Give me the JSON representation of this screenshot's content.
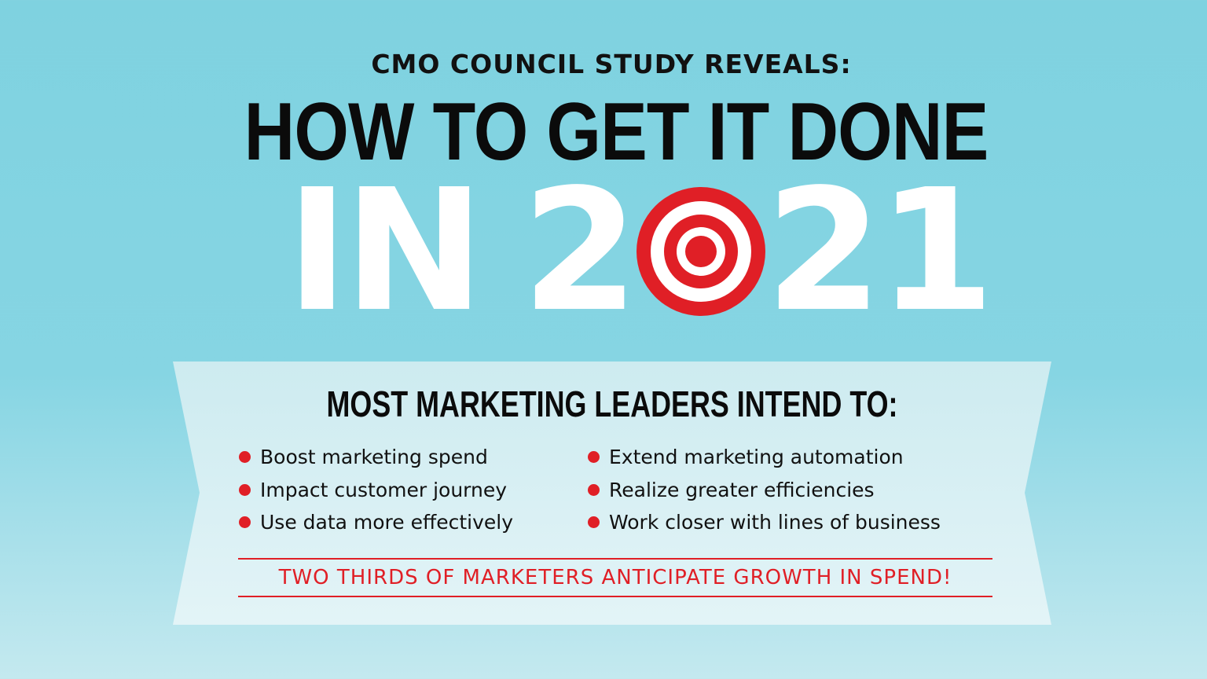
{
  "header": {
    "kicker": "CMO COUNCIL STUDY REVEALS:",
    "headline": "HOW TO GET IT DONE",
    "year_prefix": "IN",
    "year_first_digit": "2",
    "year_last_digits": "21"
  },
  "banner": {
    "title": "MOST MARKETING LEADERS INTEND TO:",
    "left_items": [
      "Boost marketing spend",
      "Impact customer journey",
      "Use data more effectively"
    ],
    "right_items": [
      "Extend marketing automation",
      "Realize greater efficiencies",
      "Work closer with lines of business"
    ],
    "callout": "TWO THIRDS OF MARKETERS ANTICIPATE GROWTH IN SPEND!"
  },
  "icons": {
    "year_zero": "bullseye-target-icon",
    "list_marker": "red-dot-bullet-icon"
  },
  "colors": {
    "background": "#7fd2e0",
    "banner": "#d8f0f4",
    "accent_red": "#e01f26",
    "headline": "#0b0b0b",
    "year_text": "#ffffff"
  }
}
